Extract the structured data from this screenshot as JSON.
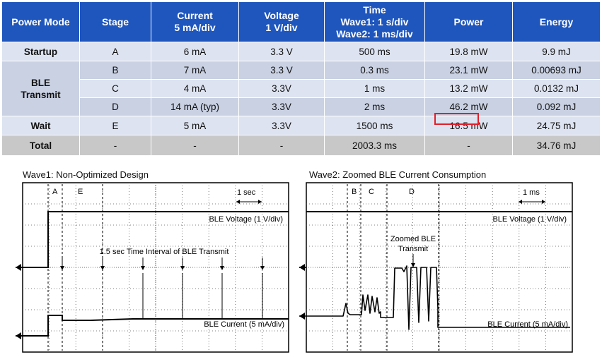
{
  "table": {
    "headers": [
      {
        "line1": "Power Mode",
        "line2": ""
      },
      {
        "line1": "Stage",
        "line2": ""
      },
      {
        "line1": "Current",
        "line2": "5 mA/div"
      },
      {
        "line1": "Voltage",
        "line2": "1 V/div"
      },
      {
        "line1": "Time",
        "line2": "Wave1: 1 s/div",
        "line3": "Wave2: 1 ms/div"
      },
      {
        "line1": "Power",
        "line2": ""
      },
      {
        "line1": "Energy",
        "line2": ""
      }
    ],
    "modes": {
      "startup": "Startup",
      "ble": "BLE\nTransmit",
      "wait": "Wait",
      "total": "Total"
    },
    "rows": [
      {
        "stage": "A",
        "current": "6 mA",
        "voltage": "3.3 V",
        "time": "500 ms",
        "power": "19.8 mW",
        "energy": "9.9 mJ"
      },
      {
        "stage": "B",
        "current": "7 mA",
        "voltage": "3.3 V",
        "time": "0.3 ms",
        "power": "23.1 mW",
        "energy": "0.00693 mJ"
      },
      {
        "stage": "C",
        "current": "4 mA",
        "voltage": "3.3V",
        "time": "1 ms",
        "power": "13.2 mW",
        "energy": "0.0132 mJ"
      },
      {
        "stage": "D",
        "current": "14 mA (typ)",
        "voltage": "3.3V",
        "time": "2 ms",
        "power": "46.2 mW",
        "energy": "0.092 mJ"
      },
      {
        "stage": "E",
        "current": "5 mA",
        "voltage": "3.3V",
        "time": "1500 ms",
        "power": "16.5 mW",
        "energy": "24.75 mJ"
      }
    ],
    "total": {
      "stage": "-",
      "current": "-",
      "voltage": "-",
      "time": "2003.3 ms",
      "power": "-",
      "energy": "34.76 mJ"
    }
  },
  "wave1": {
    "title": "Wave1: Non-Optimized Design",
    "marker_a": "A",
    "marker_e": "E",
    "scale": "1 sec",
    "voltage_label": "BLE Voltage (1 V/div)",
    "interval_label": "1.5 sec Time Interval of BLE Transmit",
    "current_label": "BLE Current (5 mA/div)"
  },
  "wave2": {
    "title": "Wave2: Zoomed BLE Current Consumption",
    "marker_b": "B",
    "marker_c": "C",
    "marker_d": "D",
    "scale": "1 ms",
    "voltage_label": "BLE Voltage (1 V/div)",
    "zoom_label_1": "Zoomed BLE",
    "zoom_label_2": "Transmit",
    "current_label": "BLE Current (5 mA/div)"
  },
  "colors": {
    "header": "#1f56bd",
    "highlight": "#e0202a"
  }
}
